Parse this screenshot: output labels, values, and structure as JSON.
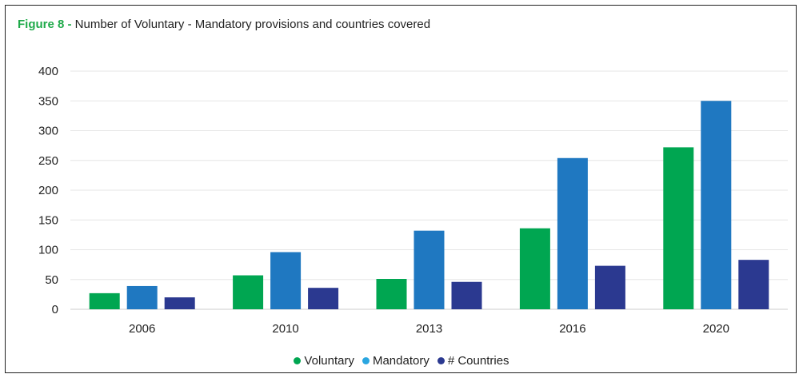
{
  "title": {
    "prefix": "Figure 8 -",
    "text": " Number of Voluntary - Mandatory provisions and countries covered"
  },
  "colors": {
    "voluntary": "#00a651",
    "mandatory": "#1f78c1",
    "mandatory_legend": "#2aa6e0",
    "countries": "#2b3990",
    "figure_label": "#1faa4a"
  },
  "chart_data": {
    "type": "bar",
    "title": "Figure 8 - Number of Voluntary - Mandatory provisions and countries covered",
    "categories": [
      "2006",
      "2010",
      "2013",
      "2016",
      "2020"
    ],
    "series": [
      {
        "name": "Voluntary",
        "values": [
          27,
          57,
          51,
          136,
          272
        ]
      },
      {
        "name": "Mandatory",
        "values": [
          39,
          96,
          132,
          254,
          350
        ]
      },
      {
        "name": "# Countries",
        "values": [
          20,
          36,
          46,
          73,
          83
        ]
      }
    ],
    "yticks": [
      0,
      50,
      100,
      150,
      200,
      250,
      300,
      350,
      400
    ],
    "ylim": [
      0,
      400
    ],
    "grid": true,
    "legend_position": "bottom"
  }
}
